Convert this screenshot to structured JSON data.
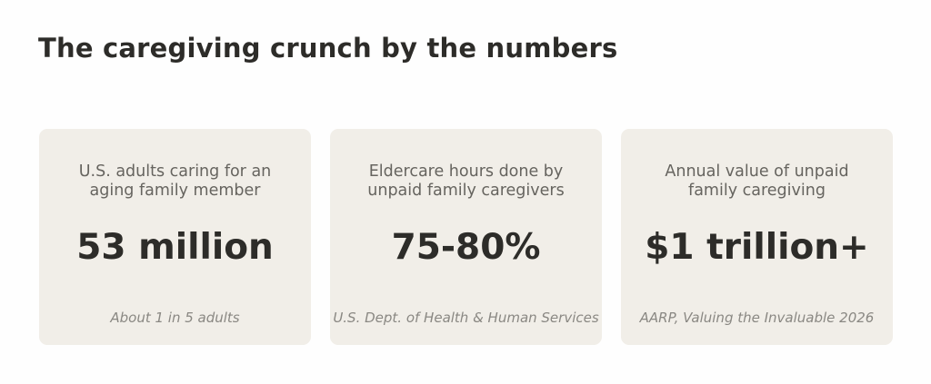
{
  "title": "The caregiving crunch by the numbers",
  "cards": [
    {
      "label_line1": "U.S. adults caring for an",
      "label_line2": "aging family member",
      "value": "53 million",
      "note": "About 1 in 5 adults"
    },
    {
      "label_line1": "Eldercare hours done by",
      "label_line2": "unpaid family caregivers",
      "value": "75-80%",
      "note": "U.S. Dept. of Health & Human Services"
    },
    {
      "label_line1": "Annual value of unpaid",
      "label_line2": "family caregiving",
      "value": "$1 trillion+",
      "note": "AARP, Valuing the Invaluable 2026"
    }
  ],
  "colors": {
    "background": "#fefefe",
    "card_background": "#f1eee8",
    "title_text": "#2d2c29",
    "label_text": "#66645f",
    "note_text": "#8a8883"
  }
}
